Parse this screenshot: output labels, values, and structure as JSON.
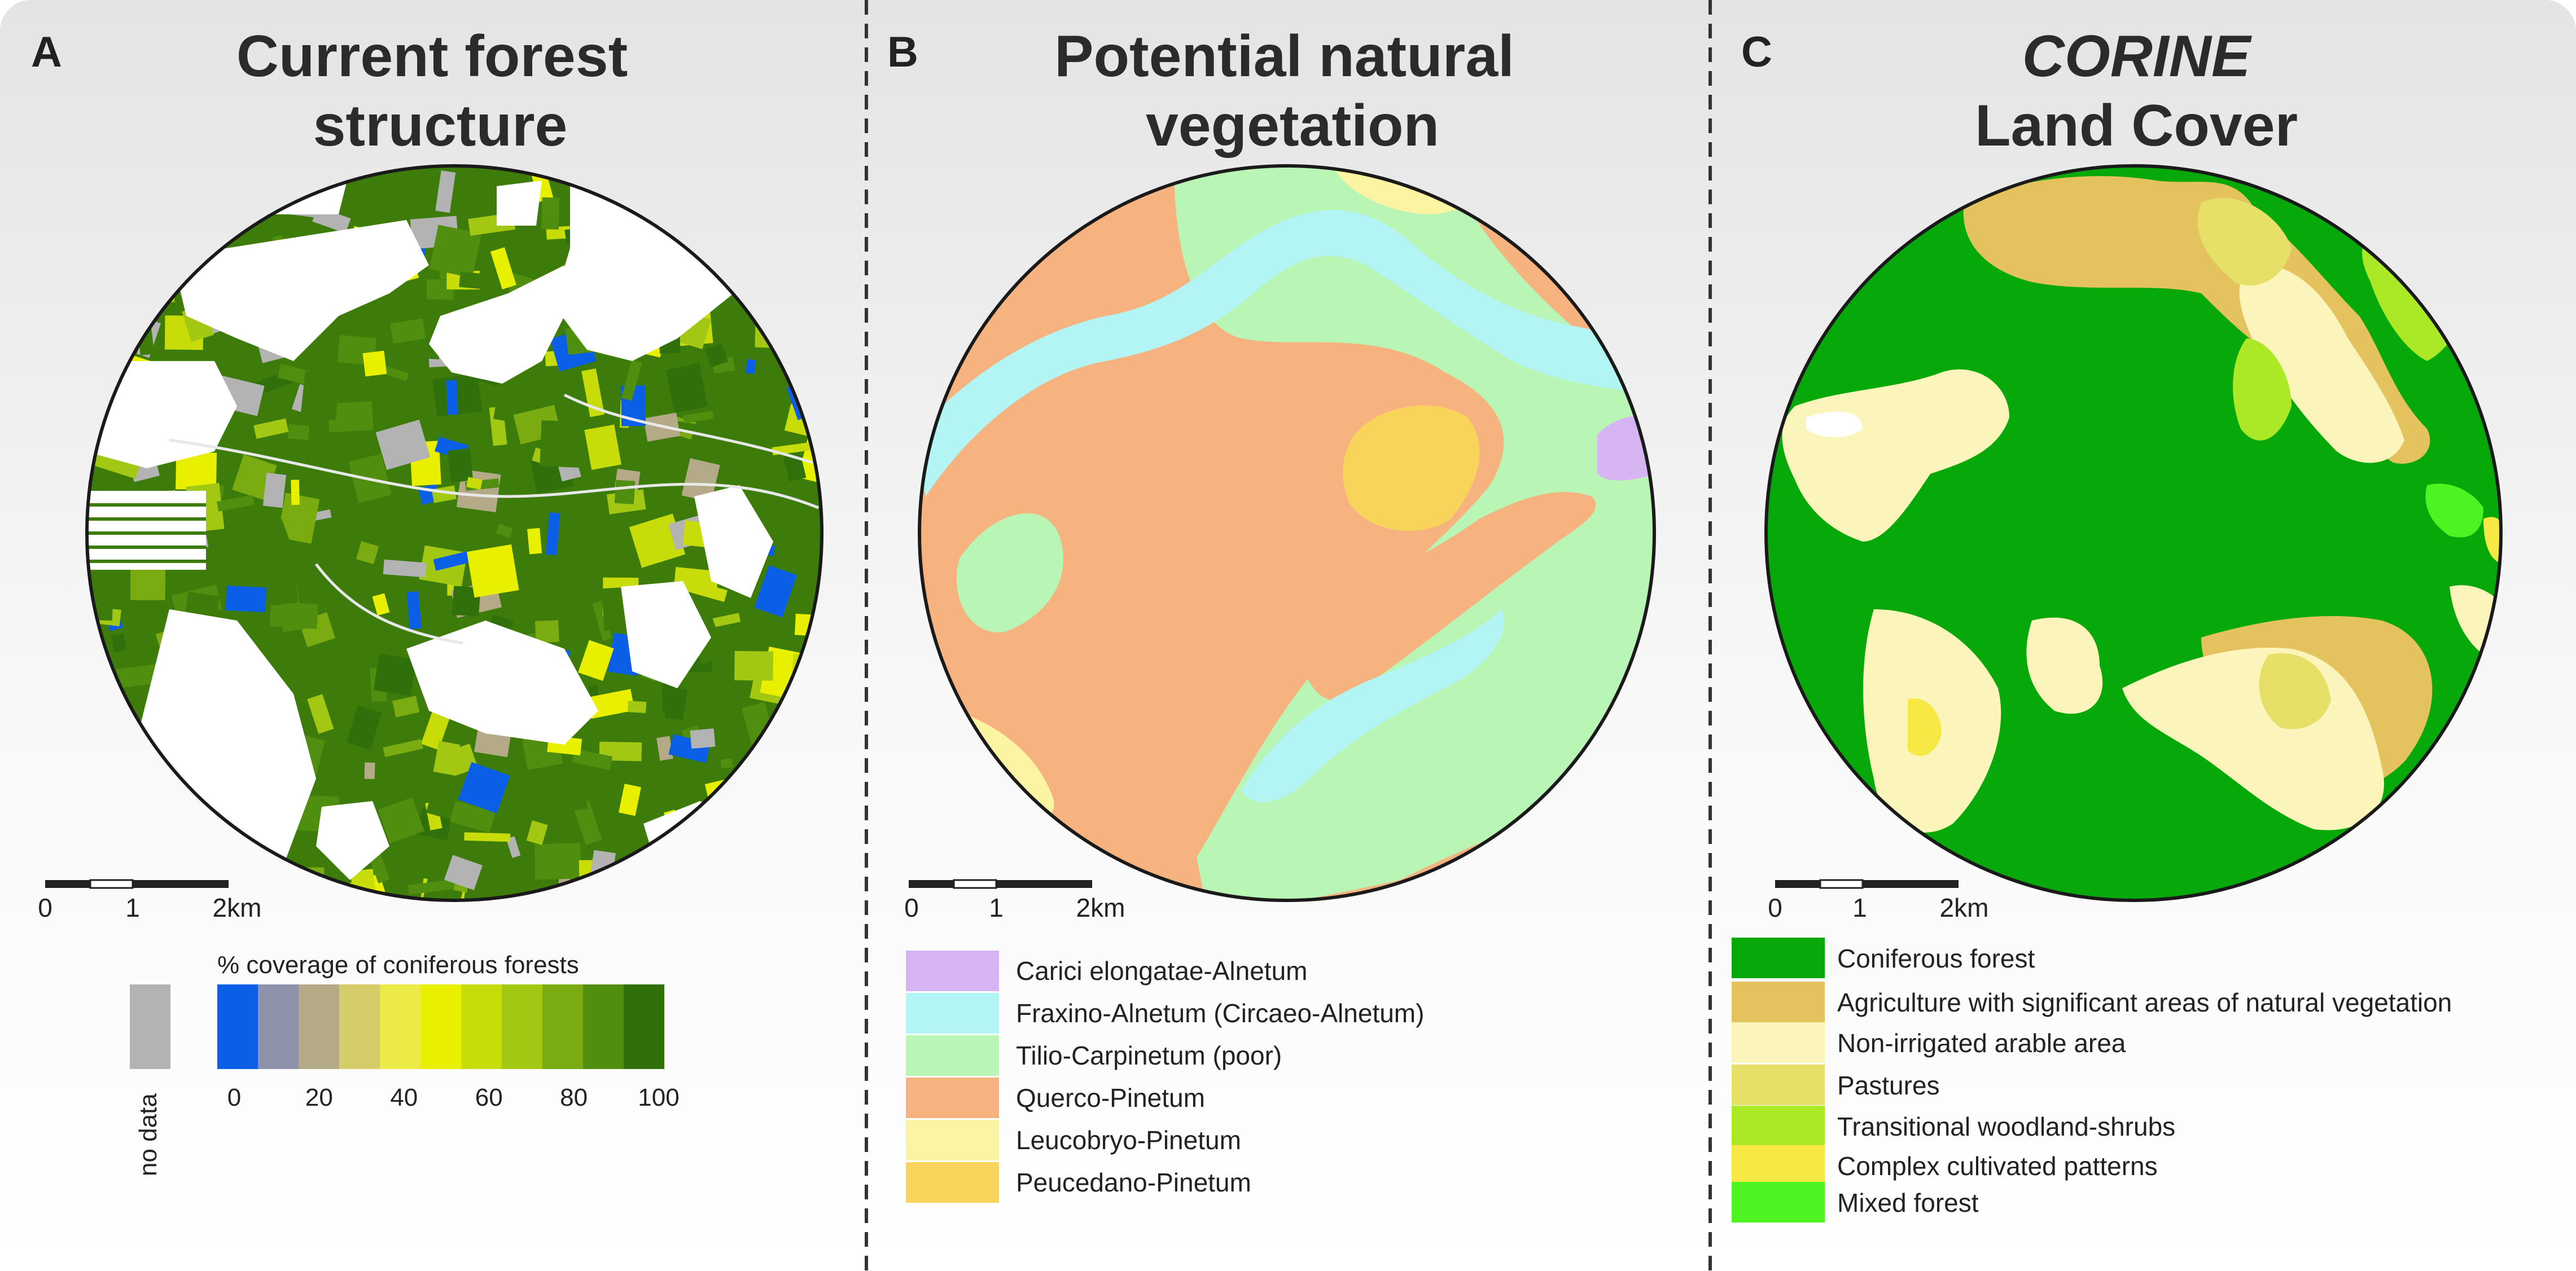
{
  "panels": [
    {
      "letter": "A",
      "title_lines": [
        "Current forest",
        "structure"
      ]
    },
    {
      "letter": "B",
      "title_lines": [
        "Potential natural",
        "vegetation"
      ]
    },
    {
      "letter": "C",
      "title_italic": "CORINE",
      "title_lines": [
        "Land Cover"
      ]
    }
  ],
  "scale_bar": {
    "ticks": [
      "0",
      "1",
      "2km"
    ]
  },
  "panel_a_legend": {
    "title": "% coverage of coniferous forests",
    "no_data_label": "no data",
    "no_data_color": "#b3b3b3",
    "ramp_colors": [
      "#0b5fe6",
      "#8e92aa",
      "#b4aa88",
      "#d5cc6a",
      "#ecea47",
      "#e8f000",
      "#c8dc0a",
      "#a3c814",
      "#7aab10",
      "#4f8e0e",
      "#2f700a"
    ],
    "tick_labels": [
      "0",
      "20",
      "40",
      "60",
      "80",
      "100"
    ]
  },
  "panel_b_legend": [
    {
      "label": "Carici elongatae-Alnetum",
      "color": "#d7b4f2"
    },
    {
      "label": "Fraxino-Alnetum (Circaeo-Alnetum)",
      "color": "#b3f4f4"
    },
    {
      "label": "Tilio-Carpinetum (poor)",
      "color": "#b9f5b5"
    },
    {
      "label": "Querco-Pinetum",
      "color": "#f6b27f"
    },
    {
      "label": "Leucobryo-Pinetum",
      "color": "#fbf5a3"
    },
    {
      "label": "Peucedano-Pinetum",
      "color": "#f8d45b"
    }
  ],
  "panel_c_legend": [
    {
      "label": "Coniferous forest",
      "color": "#06a80a"
    },
    {
      "label": "Agriculture with significant areas of natural vegetation",
      "color": "#e4c35e"
    },
    {
      "label": "Non-irrigated arable area",
      "color": "#fbf5bc"
    },
    {
      "label": "Pastures",
      "color": "#e6e069"
    },
    {
      "label": "Transitional woodland-shrubs",
      "color": "#abe826"
    },
    {
      "label": "Complex cultivated patterns",
      "color": "#f7e846"
    },
    {
      "label": "Mixed forest",
      "color": "#4ff322"
    }
  ]
}
